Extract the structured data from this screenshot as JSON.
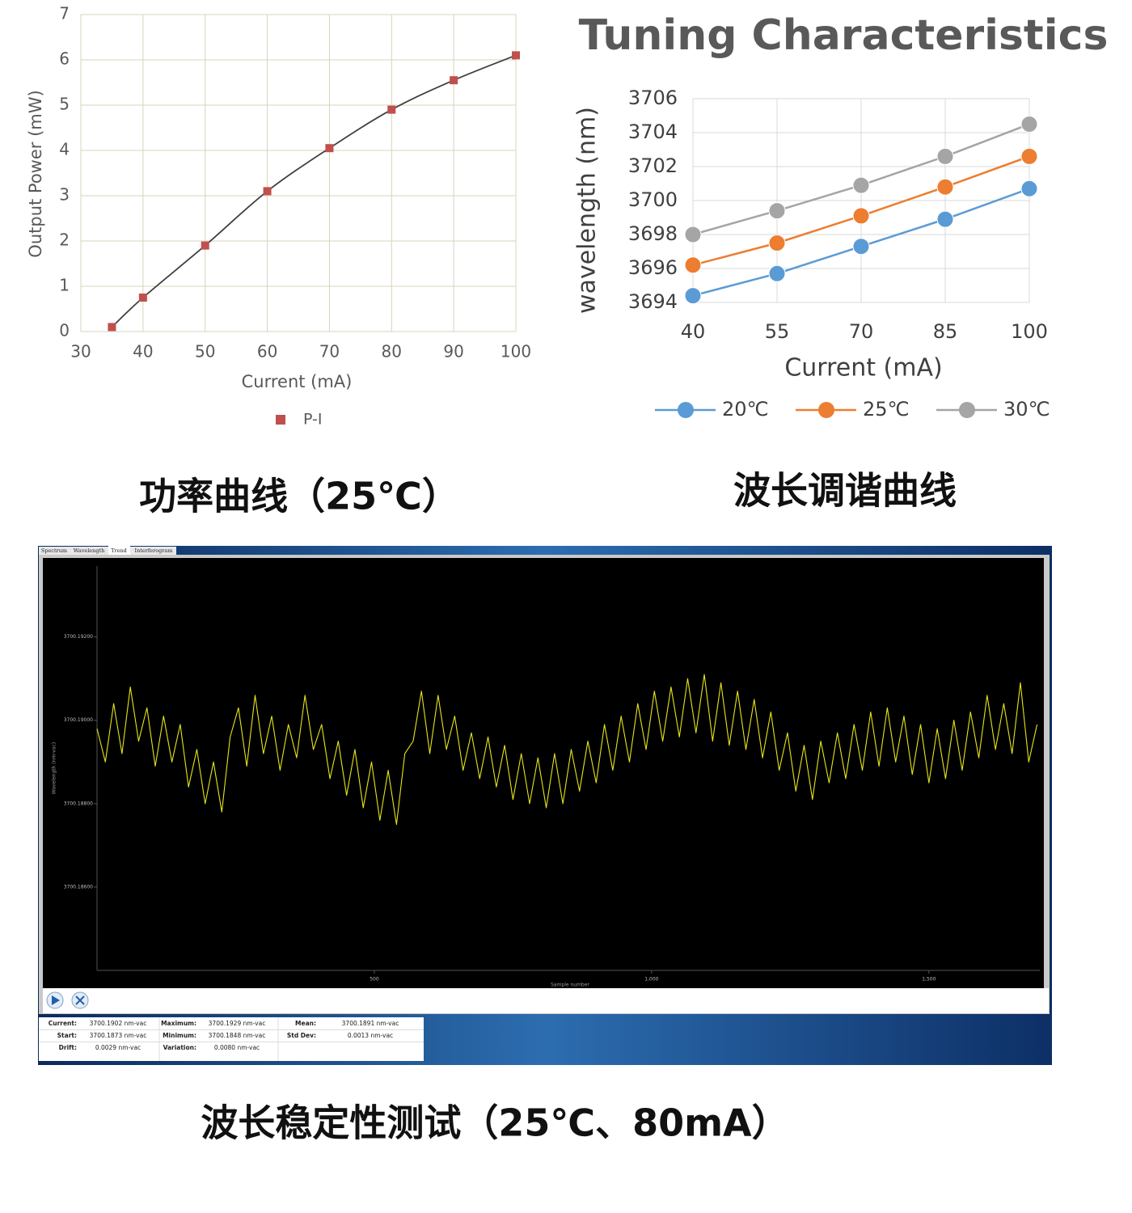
{
  "chart_data": [
    {
      "type": "scatter",
      "x_label": "Current (mA)",
      "y_label": "Output Power (mW)",
      "x": [
        35,
        40,
        50,
        60,
        70,
        80,
        90,
        100
      ],
      "series": [
        {
          "name": "P-I",
          "color": "#c0504d",
          "values": [
            0.1,
            0.75,
            1.9,
            3.1,
            4.05,
            4.9,
            5.55,
            6.1
          ]
        }
      ],
      "line": "smooth",
      "line_color": "#404040",
      "xlim": [
        30,
        100
      ],
      "xticks": [
        30,
        40,
        50,
        60,
        70,
        80,
        90,
        100
      ],
      "ylim": [
        0,
        7
      ],
      "yticks": [
        0,
        1,
        2,
        3,
        4,
        5,
        6,
        7
      ],
      "grid": true,
      "legend": "bottom"
    },
    {
      "type": "line",
      "title": "Tuning Characteristics",
      "x_label": "Current (mA)",
      "y_label": "wavelength (nm)",
      "x": [
        40,
        55,
        70,
        85,
        100
      ],
      "series": [
        {
          "name": "20℃",
          "color": "#5b9bd5",
          "values": [
            3694.4,
            3695.7,
            3697.3,
            3698.9,
            3700.7
          ]
        },
        {
          "name": "25℃",
          "color": "#ed7d31",
          "values": [
            3696.2,
            3697.5,
            3699.1,
            3700.8,
            3702.6
          ]
        },
        {
          "name": "30℃",
          "color": "#a5a5a5",
          "values": [
            3698.0,
            3699.4,
            3700.9,
            3702.6,
            3704.5
          ]
        }
      ],
      "markers": true,
      "xlim": [
        40,
        100
      ],
      "xticks": [
        40,
        55,
        70,
        85,
        100
      ],
      "ylim": [
        3694,
        3706
      ],
      "yticks": [
        3694,
        3696,
        3698,
        3700,
        3702,
        3704,
        3706
      ],
      "grid": true,
      "legend": "bottom"
    },
    {
      "type": "line",
      "x_label": "Sample number",
      "y_label": "Wavelength (nm-vac)",
      "tabs": [
        "Spectrum",
        "Wavelength",
        "Trend",
        "Interferogram"
      ],
      "x": [
        0,
        15,
        30,
        45,
        60,
        75,
        90,
        105,
        120,
        135,
        150,
        165,
        180,
        195,
        210,
        225,
        240,
        255,
        270,
        285,
        300,
        315,
        330,
        345,
        360,
        375,
        390,
        405,
        420,
        435,
        450,
        465,
        480,
        495,
        510,
        525,
        540,
        555,
        570,
        585,
        600,
        615,
        630,
        645,
        660,
        675,
        690,
        705,
        720,
        735,
        750,
        765,
        780,
        795,
        810,
        825,
        840,
        855,
        870,
        885,
        900,
        915,
        930,
        945,
        960,
        975,
        990,
        1005,
        1020,
        1035,
        1050,
        1065,
        1080,
        1095,
        1110,
        1125,
        1140,
        1155,
        1170,
        1185,
        1200,
        1215,
        1230,
        1245,
        1260,
        1275,
        1290,
        1305,
        1320,
        1335,
        1350,
        1365,
        1380,
        1395,
        1410,
        1425,
        1440,
        1455,
        1470,
        1485,
        1500,
        1515,
        1530,
        1545,
        1560,
        1575,
        1590,
        1605,
        1620,
        1635,
        1650,
        1665,
        1680,
        1695
      ],
      "series": [
        {
          "color": "#e6e619",
          "values": [
            3700.1898,
            3700.189,
            3700.1904,
            3700.1892,
            3700.1908,
            3700.1895,
            3700.1903,
            3700.1889,
            3700.1901,
            3700.189,
            3700.1899,
            3700.1884,
            3700.1893,
            3700.188,
            3700.189,
            3700.1878,
            3700.1896,
            3700.1903,
            3700.1889,
            3700.1906,
            3700.1892,
            3700.1901,
            3700.1888,
            3700.1899,
            3700.1891,
            3700.1906,
            3700.1893,
            3700.1899,
            3700.1886,
            3700.1895,
            3700.1882,
            3700.1893,
            3700.1879,
            3700.189,
            3700.1876,
            3700.1888,
            3700.1875,
            3700.1892,
            3700.1895,
            3700.1907,
            3700.1892,
            3700.1906,
            3700.1893,
            3700.1901,
            3700.1888,
            3700.1897,
            3700.1886,
            3700.1896,
            3700.1884,
            3700.1894,
            3700.1881,
            3700.1892,
            3700.188,
            3700.1891,
            3700.1879,
            3700.1892,
            3700.188,
            3700.1893,
            3700.1883,
            3700.1895,
            3700.1885,
            3700.1899,
            3700.1888,
            3700.1901,
            3700.189,
            3700.1904,
            3700.1893,
            3700.1907,
            3700.1895,
            3700.1908,
            3700.1896,
            3700.191,
            3700.1897,
            3700.1911,
            3700.1895,
            3700.1909,
            3700.1894,
            3700.1907,
            3700.1893,
            3700.1905,
            3700.1891,
            3700.1902,
            3700.1888,
            3700.1897,
            3700.1883,
            3700.1894,
            3700.1881,
            3700.1895,
            3700.1885,
            3700.1897,
            3700.1886,
            3700.1899,
            3700.1888,
            3700.1902,
            3700.1889,
            3700.1903,
            3700.189,
            3700.1901,
            3700.1887,
            3700.1899,
            3700.1885,
            3700.1898,
            3700.1886,
            3700.19,
            3700.1888,
            3700.1902,
            3700.1891,
            3700.1906,
            3700.1893,
            3700.1904,
            3700.1892,
            3700.1909,
            3700.189,
            3700.1899
          ]
        }
      ],
      "xlim": [
        0,
        1700
      ],
      "xticks": [
        500,
        {
          "value": 1000,
          "label": "1,000"
        },
        {
          "value": 1500,
          "label": "1,500"
        }
      ],
      "ylim": [
        3700.184,
        3700.1937
      ],
      "yticks": [
        {
          "value": 3700.186,
          "label": "3700.18600"
        },
        {
          "value": 3700.188,
          "label": "3700.18800"
        },
        {
          "value": 3700.19,
          "label": "3700.19000"
        },
        {
          "value": 3700.192,
          "label": "3700.19200"
        }
      ],
      "grid": false,
      "stats": {
        "rows": [
          [
            "Current:",
            "3700.1902 nm-vac",
            "Maximum:",
            "3700.1929 nm-vac",
            "Mean:",
            "3700.1891 nm-vac"
          ],
          [
            "Start:",
            "3700.1873 nm-vac",
            "Minimum:",
            "3700.1848 nm-vac",
            "Std Dev:",
            "0.0013 nm-vac"
          ],
          [
            "Drift:",
            "0.0029 nm-vac",
            "Variation:",
            "0.0080 nm-vac"
          ]
        ]
      }
    }
  ],
  "captions": [
    "功率曲线（25℃）",
    "波长调谐曲线",
    "波长稳定性测试（25℃、80mA）"
  ]
}
